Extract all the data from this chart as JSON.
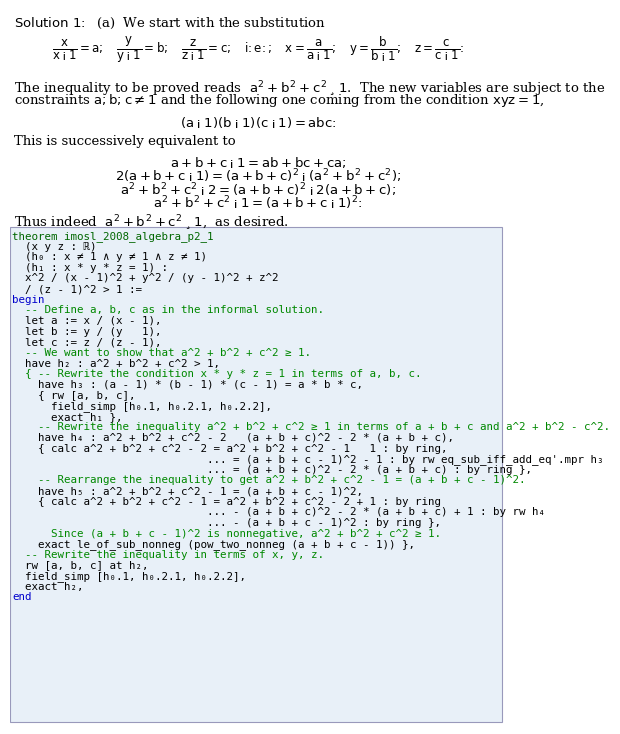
{
  "background_color": "#ffffff",
  "code_background": "#e8f0f8",
  "code_border": "#9999bb",
  "code_lines": [
    {
      "text": "theorem imosl_2008_algebra_p2_1",
      "color": "#006600"
    },
    {
      "text": "  (x y z : ℝ)",
      "color": "#000000"
    },
    {
      "text": "  (h₀ : x ≠ 1 ∧ y ≠ 1 ∧ z ≠ 1)",
      "color": "#000000"
    },
    {
      "text": "  (h₁ : x * y * z = 1) :",
      "color": "#000000"
    },
    {
      "text": "  x^2 / (x - 1)^2 + y^2 / (y - 1)^2 + z^2",
      "color": "#000000"
    },
    {
      "text": "  / (z - 1)^2 > 1 :=",
      "color": "#000000"
    },
    {
      "text": "begin",
      "color": "#0000cc"
    },
    {
      "text": "  -- Define a, b, c as in the informal solution.",
      "color": "#008800"
    },
    {
      "text": "  let a := x / (x - 1),",
      "color": "#000000"
    },
    {
      "text": "  let b := y / (y   1),",
      "color": "#000000"
    },
    {
      "text": "  let c := z / (z - 1),",
      "color": "#000000"
    },
    {
      "text": "  -- We want to show that a^2 + b^2 + c^2 ≥ 1.",
      "color": "#008800"
    },
    {
      "text": "  have h₂ : a^2 + b^2 + c^2 > 1,",
      "color": "#000000"
    },
    {
      "text": "  { -- Rewrite the condition x * y * z = 1 in terms of a, b, c.",
      "color": "#008800"
    },
    {
      "text": "    have h₃ : (a - 1) * (b - 1) * (c - 1) = a * b * c,",
      "color": "#000000"
    },
    {
      "text": "    { rw [a, b, c],",
      "color": "#000000"
    },
    {
      "text": "      field_simp [h₀.1, h₀.2.1, h₀.2.2],",
      "color": "#000000"
    },
    {
      "text": "      exact h₁ },",
      "color": "#000000"
    },
    {
      "text": "    -- Rewrite the inequality a^2 + b^2 + c^2 ≥ 1 in terms of a + b + c and a^2 + b^2 - c^2.",
      "color": "#008800"
    },
    {
      "text": "    have h₄ : a^2 + b^2 + c^2 - 2   (a + b + c)^2 - 2 * (a + b + c),",
      "color": "#000000"
    },
    {
      "text": "    { calc a^2 + b^2 + c^2 - 2 = a^2 + b^2 + c^2 - 1   1 : by ring,",
      "color": "#000000"
    },
    {
      "text": "                              ... = (a + b + c - 1)^2 - 1 : by rw eq_sub_iff_add_eq'.mpr h₃",
      "color": "#000000"
    },
    {
      "text": "                              ... = (a + b + c)^2 - 2 * (a + b + c) : by ring },",
      "color": "#000000"
    },
    {
      "text": "    -- Rearrange the inequality to get a^2 + b^2 + c^2 - 1 = (a + b + c - 1)^2.",
      "color": "#008800"
    },
    {
      "text": "    have h₅ : a^2 + b^2 + c^2 - 1 = (a + b + c - 1)^2,",
      "color": "#000000"
    },
    {
      "text": "    { calc a^2 + b^2 + c^2 - 1 = a^2 + b^2 + c^2 - 2 + 1 : by ring",
      "color": "#000000"
    },
    {
      "text": "                              ... - (a + b + c)^2 - 2 * (a + b + c) + 1 : by rw h₄",
      "color": "#000000"
    },
    {
      "text": "                              ... - (a + b + c - 1)^2 : by ring },",
      "color": "#000000"
    },
    {
      "text": "      Since (a + b + c - 1)^2 is nonnegative, a^2 + b^2 + c^2 ≥ 1.",
      "color": "#008800"
    },
    {
      "text": "    exact le_of_sub_nonneg (pow_two_nonneg (a + b + c - 1)) },",
      "color": "#000000"
    },
    {
      "text": "  -- Rewrite the inequality in terms of x, y, z.",
      "color": "#008800"
    },
    {
      "text": "  rw [a, b, c] at h₂,",
      "color": "#000000"
    },
    {
      "text": "  field_simp [h₀.1, h₀.2.1, h₀.2.2],",
      "color": "#000000"
    },
    {
      "text": "  exact h₂,",
      "color": "#000000"
    },
    {
      "text": "end",
      "color": "#0000cc"
    }
  ]
}
